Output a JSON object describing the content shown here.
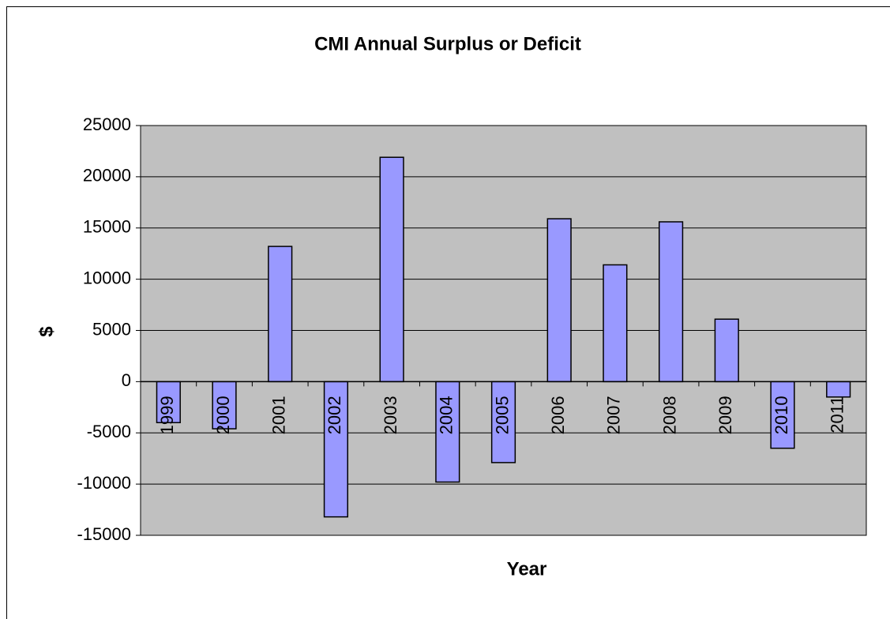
{
  "chart_data": {
    "type": "bar",
    "title": "CMI Annual Surplus or Deficit",
    "x_label": "Year",
    "y_label": "$",
    "categories": [
      "1999",
      "2000",
      "2001",
      "2002",
      "2003",
      "2004",
      "2005",
      "2006",
      "2007",
      "2008",
      "2009",
      "2010",
      "2011"
    ],
    "values": [
      -4000,
      -4600,
      13200,
      -13200,
      21900,
      -9800,
      -7900,
      15900,
      11400,
      15600,
      6100,
      -6500,
      -1500
    ],
    "color": "#9999ff",
    "ylim": [
      -15000,
      25000
    ],
    "yticks": [
      -15000,
      -10000,
      -5000,
      0,
      5000,
      10000,
      15000,
      20000,
      25000
    ],
    "grid": true
  }
}
